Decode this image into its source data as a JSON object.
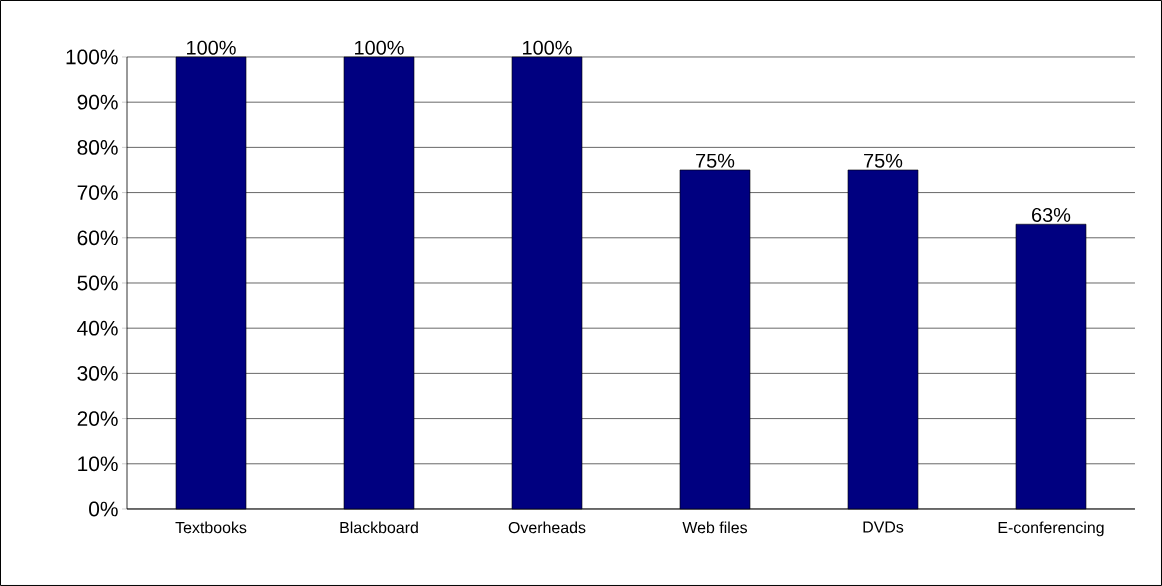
{
  "chart_data": {
    "type": "bar",
    "categories": [
      "Textbooks",
      "Blackboard",
      "Overheads",
      "Web files",
      "DVDs",
      "E-conferencing"
    ],
    "values": [
      100,
      100,
      100,
      75,
      75,
      63
    ],
    "value_labels": [
      "100%",
      "100%",
      "100%",
      "75%",
      "75%",
      "63%"
    ],
    "color": "#000080",
    "ylim": [
      0,
      100
    ],
    "yticks": [
      {
        "value": 0,
        "label": "0%"
      },
      {
        "value": 10,
        "label": "10%"
      },
      {
        "value": 20,
        "label": "20%"
      },
      {
        "value": 30,
        "label": "30%"
      },
      {
        "value": 40,
        "label": "40%"
      },
      {
        "value": 50,
        "label": "50%"
      },
      {
        "value": 60,
        "label": "60%"
      },
      {
        "value": 70,
        "label": "70%"
      },
      {
        "value": 80,
        "label": "80%"
      },
      {
        "value": 90,
        "label": "90%"
      },
      {
        "value": 100,
        "label": "100%"
      }
    ],
    "grid": "y"
  }
}
